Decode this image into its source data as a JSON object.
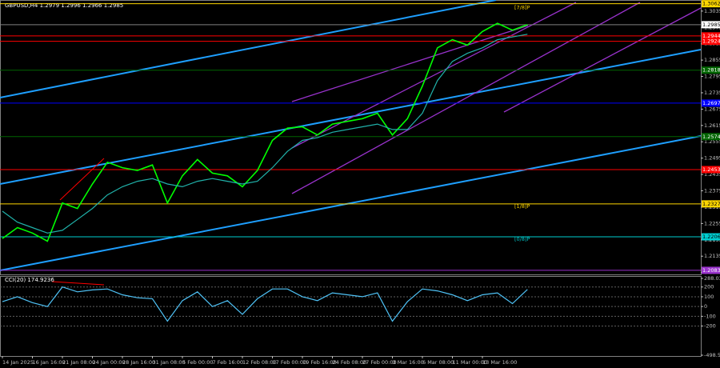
{
  "chart_data": [
    {
      "type": "line",
      "title": "GBPUSD,H4 1.2979 1.2996 1.2966 1.2985",
      "categories": [
        "14 Jan 2025",
        null,
        "16 Jan 16:00",
        null,
        "21 Jan 08:00",
        null,
        "24 Jan 00:00",
        null,
        "28 Jan 16:00",
        null,
        "31 Jan 08:00",
        null,
        "5 Feb 00:00",
        null,
        "7 Feb 16:00",
        null,
        "12 Feb 08:00",
        null,
        "17 Feb 00:00",
        null,
        "19 Feb 16:00",
        null,
        "24 Feb 08:00",
        null,
        "27 Feb 00:00",
        null,
        "3 Mar 16:00",
        null,
        "6 Mar 08:00",
        null,
        "11 Mar 00:00",
        null,
        "13 Mar 16:00",
        null,
        null,
        null
      ],
      "series": [
        {
          "color": "#00ff00",
          "values": [
            1.22,
            1.224,
            1.222,
            1.219,
            1.233,
            1.231,
            1.24,
            1.248,
            1.246,
            1.245,
            1.247,
            1.233,
            1.243,
            1.249,
            1.244,
            1.243,
            1.239,
            1.245,
            1.256,
            1.2605,
            1.261,
            1.258,
            1.262,
            1.263,
            1.264,
            1.266,
            1.258,
            1.264,
            1.276,
            1.29,
            1.293,
            1.291,
            1.296,
            1.299,
            1.2965,
            1.2985
          ]
        },
        {
          "color": "#20b2aa",
          "values": [
            1.23,
            1.226,
            1.224,
            1.222,
            1.223,
            1.227,
            1.231,
            1.236,
            1.239,
            1.241,
            1.242,
            1.24,
            1.239,
            1.241,
            1.242,
            1.241,
            1.24,
            1.241,
            1.246,
            1.252,
            1.256,
            1.257,
            1.259,
            1.26,
            1.261,
            1.262,
            1.26,
            1.26,
            1.266,
            1.278,
            1.285,
            1.288,
            1.29,
            1.293,
            1.294,
            1.295
          ]
        }
      ],
      "ylim": [
        1.2071,
        1.3061
      ],
      "yticks": [
        1.3035,
        1.2975,
        1.2915,
        1.2855,
        1.2795,
        1.2735,
        1.2675,
        1.2615,
        1.2555,
        1.2495,
        1.2435,
        1.2375,
        1.2315,
        1.2255,
        1.2195,
        1.2135,
        1.2075
      ],
      "levels": [
        {
          "value": 1.3062,
          "label": "1.3062",
          "color": "#ffd700",
          "text": "[7/8]P"
        },
        {
          "value": 1.2985,
          "label": "1.2985",
          "color": "#ffffff"
        },
        {
          "value": 1.2944,
          "label": "1.2944",
          "color": "#ff0000"
        },
        {
          "value": 1.2924,
          "label": "1.2924",
          "color": "#ff0000"
        },
        {
          "value": 1.2818,
          "label": "1.2818",
          "color": "#006400"
        },
        {
          "value": 1.2697,
          "label": "1.2697",
          "color": "#0000ff"
        },
        {
          "value": 1.2574,
          "label": "1.2574",
          "color": "#006400"
        },
        {
          "value": 1.2453,
          "label": "1.2453",
          "color": "#ff0000"
        },
        {
          "value": 1.2327,
          "label": "1.2327",
          "color": "#ffd700",
          "text": "[1/8]P"
        },
        {
          "value": 1.2206,
          "label": "1.2206",
          "color": "#00ced1",
          "text": "[0/8]P"
        },
        {
          "value": 1.2083,
          "label": "1.2083",
          "color": "#9932cc"
        }
      ]
    },
    {
      "type": "line",
      "title": "CCI(20) 174.9236",
      "series": [
        {
          "color": "#4fc3f7",
          "values": [
            50,
            100,
            40,
            0,
            200,
            150,
            170,
            180,
            120,
            90,
            80,
            -150,
            60,
            150,
            0,
            60,
            -80,
            80,
            180,
            180,
            100,
            60,
            140,
            120,
            100,
            140,
            -150,
            50,
            180,
            160,
            120,
            60,
            120,
            140,
            30,
            175
          ]
        }
      ],
      "ylim": [
        -498.5384,
        288.0313
      ],
      "yticks": [
        288.0313,
        200,
        100,
        0,
        -100,
        -200,
        -498.5384
      ],
      "grid": true
    }
  ]
}
